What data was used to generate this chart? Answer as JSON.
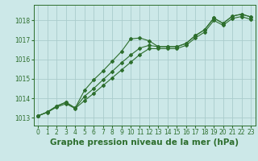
{
  "bg_color": "#cce8e8",
  "grid_color": "#aacccc",
  "line_color": "#2d6e2d",
  "marker_color": "#2d6e2d",
  "title": "Graphe pression niveau de la mer (hPa)",
  "title_fontsize": 7.5,
  "tick_fontsize": 5.5,
  "xlim": [
    -0.5,
    23.5
  ],
  "ylim": [
    1012.6,
    1018.8
  ],
  "yticks": [
    1013,
    1014,
    1015,
    1016,
    1017,
    1018
  ],
  "xticks": [
    0,
    1,
    2,
    3,
    4,
    5,
    6,
    7,
    8,
    9,
    10,
    11,
    12,
    13,
    14,
    15,
    16,
    17,
    18,
    19,
    20,
    21,
    22,
    23
  ],
  "seriesA": [
    1013.1,
    1013.3,
    1013.6,
    1013.8,
    1013.5,
    1014.4,
    1014.95,
    1015.4,
    1015.9,
    1016.4,
    1017.05,
    1017.1,
    1016.95,
    1016.65,
    1016.65,
    1016.65,
    1016.82,
    1017.22,
    1017.52,
    1018.12,
    1017.85,
    1018.22,
    1018.32,
    1018.18
  ],
  "seriesB": [
    1013.1,
    1013.3,
    1013.6,
    1013.8,
    1013.5,
    1014.1,
    1014.5,
    1014.95,
    1015.38,
    1015.82,
    1016.22,
    1016.58,
    1016.72,
    1016.65,
    1016.65,
    1016.65,
    1016.82,
    1017.22,
    1017.52,
    1018.12,
    1017.85,
    1018.22,
    1018.32,
    1018.18
  ],
  "seriesC": [
    1013.1,
    1013.28,
    1013.55,
    1013.72,
    1013.48,
    1013.88,
    1014.25,
    1014.65,
    1015.05,
    1015.45,
    1015.85,
    1016.25,
    1016.55,
    1016.55,
    1016.55,
    1016.55,
    1016.72,
    1017.1,
    1017.4,
    1018.0,
    1017.75,
    1018.1,
    1018.2,
    1018.05
  ]
}
